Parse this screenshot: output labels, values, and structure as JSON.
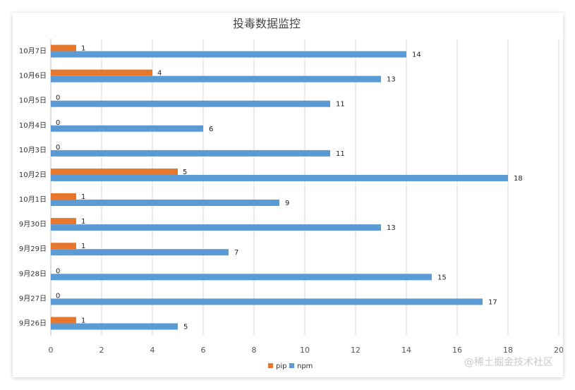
{
  "chart_data": {
    "type": "bar",
    "orientation": "horizontal",
    "title": "投毒数据监控",
    "categories": [
      "9月26日",
      "9月27日",
      "9月28日",
      "9月29日",
      "9月30日",
      "10月1日",
      "10月2日",
      "10月3日",
      "10月4日",
      "10月5日",
      "10月6日",
      "10月7日"
    ],
    "series": [
      {
        "name": "pip",
        "color": "#E8772E",
        "values": [
          1,
          0,
          0,
          1,
          1,
          1,
          5,
          0,
          0,
          0,
          4,
          1
        ]
      },
      {
        "name": "npm",
        "color": "#5B9BD5",
        "values": [
          5,
          17,
          15,
          7,
          13,
          9,
          18,
          11,
          6,
          11,
          13,
          14
        ]
      }
    ],
    "xlim": [
      0,
      20
    ],
    "xticks": [
      0,
      2,
      4,
      6,
      8,
      10,
      12,
      14,
      16,
      18,
      20
    ],
    "grid": true,
    "legend_position": "bottom",
    "data_labels": true
  },
  "watermark": "@稀土掘金技术社区"
}
